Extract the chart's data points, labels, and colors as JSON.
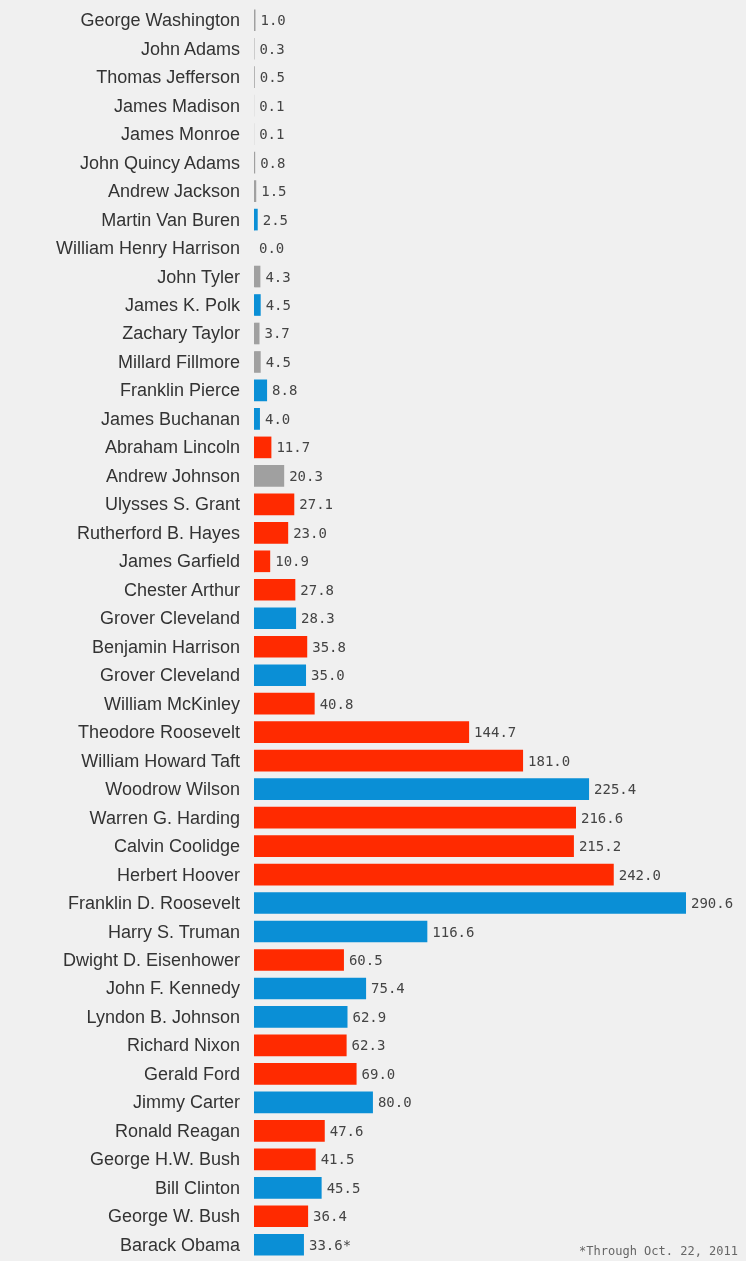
{
  "chart_data": {
    "type": "bar",
    "orientation": "horizontal",
    "tick_labels": "y",
    "categories": [
      "George Washington",
      "John Adams",
      "Thomas Jefferson",
      "James Madison",
      "James Monroe",
      "John Quincy Adams",
      "Andrew Jackson",
      "Martin Van Buren",
      "William Henry Harrison",
      "John Tyler",
      "James K. Polk",
      "Zachary Taylor",
      "Millard Fillmore",
      "Franklin Pierce",
      "James Buchanan",
      "Abraham Lincoln",
      "Andrew Johnson",
      "Ulysses S. Grant",
      "Rutherford B. Hayes",
      "James Garfield",
      "Chester Arthur",
      "Grover Cleveland",
      "Benjamin Harrison",
      "Grover Cleveland",
      "William McKinley",
      "Theodore Roosevelt",
      "William Howard Taft",
      "Woodrow Wilson",
      "Warren G. Harding",
      "Calvin Coolidge",
      "Herbert Hoover",
      "Franklin D. Roosevelt",
      "Harry S. Truman",
      "Dwight D. Eisenhower",
      "John F. Kennedy",
      "Lyndon B. Johnson",
      "Richard Nixon",
      "Gerald Ford",
      "Jimmy Carter",
      "Ronald Reagan",
      "George H.W. Bush",
      "Bill Clinton",
      "George W. Bush",
      "Barack Obama"
    ],
    "values": [
      1.0,
      0.3,
      0.5,
      0.1,
      0.1,
      0.8,
      1.5,
      2.5,
      0.0,
      4.3,
      4.5,
      3.7,
      4.5,
      8.8,
      4.0,
      11.7,
      20.3,
      27.1,
      23.0,
      10.9,
      27.8,
      28.3,
      35.8,
      35.0,
      40.8,
      144.7,
      181.0,
      225.4,
      216.6,
      215.2,
      242.0,
      290.6,
      116.6,
      60.5,
      75.4,
      62.9,
      62.3,
      69.0,
      80.0,
      47.6,
      41.5,
      45.5,
      36.4,
      33.6
    ],
    "value_labels": [
      "1.0",
      "0.3",
      "0.5",
      "0.1",
      "0.1",
      "0.8",
      "1.5",
      "2.5",
      "0.0",
      "4.3",
      "4.5",
      "3.7",
      "4.5",
      "8.8",
      "4.0",
      "11.7",
      "20.3",
      "27.1",
      "23.0",
      "10.9",
      "27.8",
      "28.3",
      "35.8",
      "35.0",
      "40.8",
      "144.7",
      "181.0",
      "225.4",
      "216.6",
      "215.2",
      "242.0",
      "290.6",
      "116.6",
      "60.5",
      "75.4",
      "62.9",
      "62.3",
      "69.0",
      "80.0",
      "47.6",
      "41.5",
      "45.5",
      "36.4",
      "33.6*"
    ],
    "colors": [
      "#a0a0a0",
      "#a0a0a0",
      "#a0a0a0",
      "#a0a0a0",
      "#a0a0a0",
      "#a0a0a0",
      "#a0a0a0",
      "#0a8fd6",
      "#a0a0a0",
      "#a0a0a0",
      "#0a8fd6",
      "#a0a0a0",
      "#a0a0a0",
      "#0a8fd6",
      "#0a8fd6",
      "#ff2a00",
      "#a0a0a0",
      "#ff2a00",
      "#ff2a00",
      "#ff2a00",
      "#ff2a00",
      "#0a8fd6",
      "#ff2a00",
      "#0a8fd6",
      "#ff2a00",
      "#ff2a00",
      "#ff2a00",
      "#0a8fd6",
      "#ff2a00",
      "#ff2a00",
      "#ff2a00",
      "#0a8fd6",
      "#0a8fd6",
      "#ff2a00",
      "#0a8fd6",
      "#0a8fd6",
      "#ff2a00",
      "#ff2a00",
      "#0a8fd6",
      "#ff2a00",
      "#ff2a00",
      "#0a8fd6",
      "#ff2a00",
      "#0a8fd6"
    ],
    "annotations": [
      "*Through Oct. 22, 2011"
    ]
  }
}
